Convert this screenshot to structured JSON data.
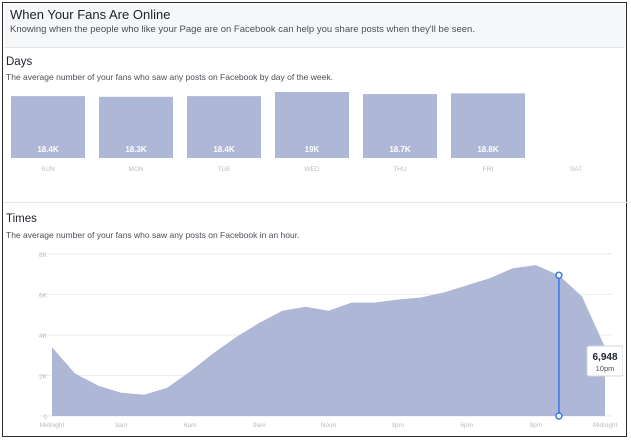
{
  "header": {
    "title": "When Your Fans Are Online",
    "subtitle": "Knowing when the people who like your Page are on Facebook can help you share posts when they'll be seen."
  },
  "days": {
    "title": "Days",
    "description": "The average number of your fans who saw any posts on Facebook by day of the week."
  },
  "times": {
    "title": "Times",
    "description": "The average number of your fans who saw any posts on Facebook in an hour."
  },
  "colors": {
    "fill": "#aeb8d6",
    "line": "#3b78e7",
    "text_light": "#b8bcc4"
  },
  "chart_data": [
    {
      "type": "bar",
      "categories": [
        "SUN",
        "MON",
        "TUE",
        "WED",
        "THU",
        "FRI",
        "SAT"
      ],
      "values": [
        18400,
        18300,
        18400,
        19000,
        18700,
        18800,
        null
      ],
      "data_labels": [
        "18.4K",
        "18.3K",
        "18.4K",
        "19K",
        "18.7K",
        "18.8K",
        ""
      ]
    },
    {
      "type": "area",
      "x": [
        "12am",
        "1am",
        "2am",
        "3am",
        "4am",
        "5am",
        "6am",
        "7am",
        "8am",
        "9am",
        "10am",
        "11am",
        "12pm",
        "1pm",
        "2pm",
        "3pm",
        "4pm",
        "5pm",
        "6pm",
        "7pm",
        "8pm",
        "9pm",
        "10pm",
        "11pm",
        "12am"
      ],
      "values": [
        3400,
        2100,
        1500,
        1150,
        1050,
        1400,
        2200,
        3100,
        3900,
        4600,
        5200,
        5400,
        5200,
        5600,
        5600,
        5750,
        5850,
        6100,
        6450,
        6800,
        7300,
        7450,
        6948,
        5900,
        3400
      ],
      "xticks": [
        "Midnight",
        "3am",
        "6am",
        "9am",
        "Noon",
        "3pm",
        "6pm",
        "9pm",
        "Midnight"
      ],
      "yticks": [
        "0",
        "2K",
        "4K",
        "6K",
        "8K"
      ],
      "ylim": [
        0,
        8000
      ],
      "grid": true,
      "highlight": {
        "index": 22,
        "value": "6,948",
        "label": "10pm"
      }
    }
  ]
}
